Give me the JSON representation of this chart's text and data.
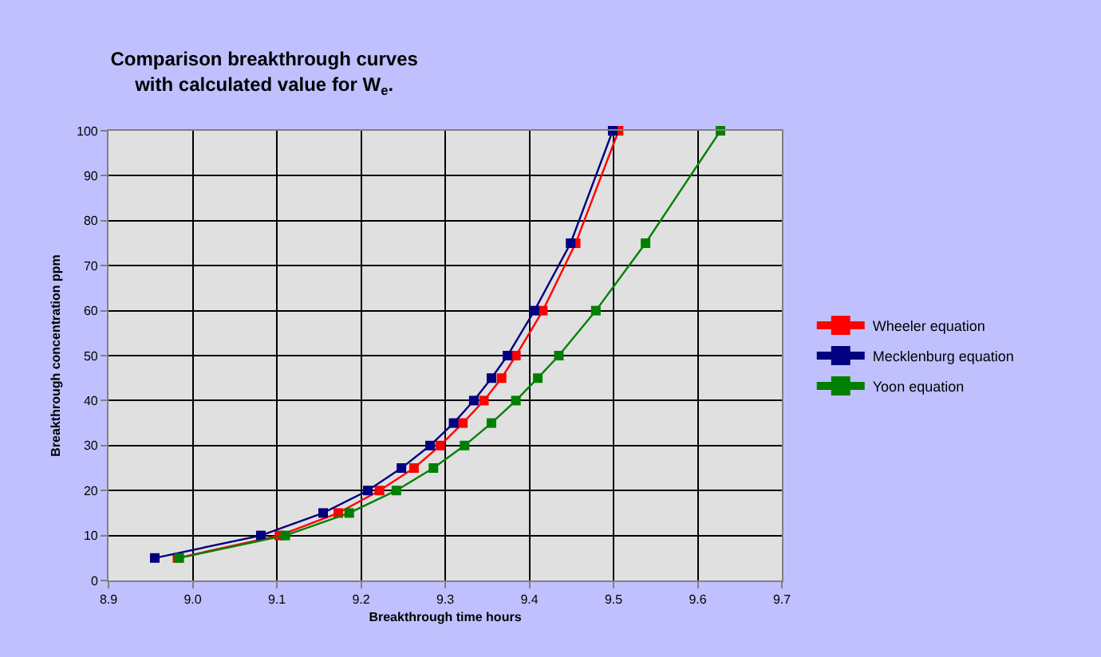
{
  "chart_data": {
    "type": "line",
    "title": "Comparison breakthrough curves\nwith calculated value for W$_{e}$.",
    "xlabel": "Breakthrough time hours",
    "ylabel": "Breakthrough concentration ppm",
    "xlim": [
      8.9,
      9.7
    ],
    "xticks": [
      {
        "value": 8.9,
        "label": "8.9"
      },
      {
        "value": 9.0,
        "label": "9.0"
      },
      {
        "value": 9.1,
        "label": "9.1"
      },
      {
        "value": 9.2,
        "label": "9.2"
      },
      {
        "value": 9.3,
        "label": "9.3"
      },
      {
        "value": 9.4,
        "label": "9.4"
      },
      {
        "value": 9.5,
        "label": "9.5"
      },
      {
        "value": 9.6,
        "label": "9.6"
      },
      {
        "value": 9.7,
        "label": "9.7"
      }
    ],
    "ylim": [
      0,
      100
    ],
    "yticks": [
      0,
      10,
      20,
      30,
      40,
      50,
      60,
      70,
      80,
      90,
      100
    ],
    "grid": true,
    "legend": "right",
    "marker": "square",
    "line_style": "solid",
    "series": [
      {
        "name": "Wheeler equation",
        "color": "#ff0000",
        "x": [
          8.982,
          9.103,
          9.173,
          9.222,
          9.263,
          9.294,
          9.321,
          9.346,
          9.367,
          9.384,
          9.416,
          9.455,
          9.506
        ],
        "values": [
          5,
          10,
          15,
          20,
          25,
          30,
          35,
          40,
          45,
          50,
          60,
          75,
          100
        ]
      },
      {
        "name": "Mecklenburg equation",
        "color": "#000080",
        "x": [
          8.955,
          9.081,
          9.155,
          9.208,
          9.248,
          9.282,
          9.31,
          9.334,
          9.355,
          9.374,
          9.406,
          9.449,
          9.499
        ],
        "values": [
          5,
          10,
          15,
          20,
          25,
          30,
          35,
          40,
          45,
          50,
          60,
          75,
          100
        ]
      },
      {
        "name": "Yoon equation",
        "color": "#008000",
        "x": [
          8.984,
          9.11,
          9.186,
          9.242,
          9.286,
          9.323,
          9.355,
          9.384,
          9.41,
          9.435,
          9.479,
          9.538,
          9.627
        ],
        "values": [
          5,
          10,
          15,
          20,
          25,
          30,
          35,
          40,
          45,
          50,
          60,
          75,
          100
        ]
      }
    ]
  }
}
